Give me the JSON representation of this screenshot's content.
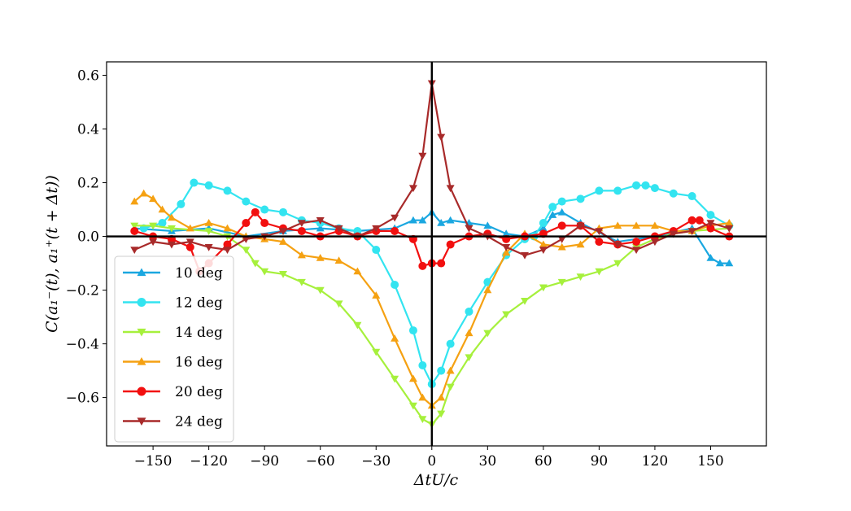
{
  "chart_data": {
    "type": "line",
    "title": "",
    "xlabel": "ΔtU/c",
    "ylabel": "C(a₁⁻(t), a₁⁺(t + Δt))",
    "xlim": [
      -175,
      180
    ],
    "ylim": [
      -0.78,
      0.65
    ],
    "xticks": [
      -150,
      -120,
      -90,
      -60,
      -30,
      0,
      30,
      60,
      90,
      120,
      150
    ],
    "xtick_labels": [
      "−150",
      "−120",
      "−90",
      "−60",
      "−30",
      "0",
      "30",
      "60",
      "90",
      "120",
      "150"
    ],
    "yticks": [
      -0.6,
      -0.4,
      -0.2,
      0.0,
      0.2,
      0.4,
      0.6
    ],
    "ytick_labels": [
      "−0.6",
      "−0.4",
      "−0.2",
      "0.0",
      "0.2",
      "0.4",
      "0.6"
    ],
    "grid": false,
    "legend_position": "lower-left",
    "reference_lines": {
      "x": 0,
      "y": 0
    },
    "series": [
      {
        "name": "10 deg",
        "color": "#1aa7e0",
        "marker": "triangle-up",
        "x": [
          -160,
          -140,
          -120,
          -100,
          -80,
          -60,
          -40,
          -20,
          -10,
          -5,
          0,
          5,
          10,
          20,
          30,
          40,
          50,
          60,
          65,
          70,
          80,
          100,
          120,
          140,
          150,
          155,
          160
        ],
        "y": [
          0.03,
          0.02,
          0.03,
          0.0,
          0.02,
          0.03,
          0.02,
          0.03,
          0.06,
          0.06,
          0.09,
          0.05,
          0.06,
          0.05,
          0.04,
          0.01,
          0.0,
          0.03,
          0.08,
          0.09,
          0.05,
          -0.02,
          0.0,
          0.03,
          -0.08,
          -0.1,
          -0.1
        ]
      },
      {
        "name": "12 deg",
        "color": "#33e4f0",
        "marker": "circle",
        "x": [
          -155,
          -145,
          -135,
          -128,
          -120,
          -110,
          -100,
          -90,
          -80,
          -70,
          -60,
          -50,
          -40,
          -30,
          -20,
          -10,
          -5,
          0,
          5,
          10,
          20,
          30,
          40,
          50,
          55,
          60,
          65,
          70,
          80,
          90,
          100,
          110,
          115,
          120,
          130,
          140,
          150,
          160
        ],
        "y": [
          0.03,
          0.05,
          0.12,
          0.2,
          0.19,
          0.17,
          0.13,
          0.1,
          0.09,
          0.06,
          0.05,
          0.03,
          0.02,
          -0.05,
          -0.18,
          -0.35,
          -0.48,
          -0.55,
          -0.5,
          -0.4,
          -0.28,
          -0.17,
          -0.07,
          -0.01,
          0.0,
          0.05,
          0.11,
          0.13,
          0.14,
          0.17,
          0.17,
          0.19,
          0.19,
          0.18,
          0.16,
          0.15,
          0.08,
          0.04
        ]
      },
      {
        "name": "14 deg",
        "color": "#a6f03c",
        "marker": "triangle-down",
        "x": [
          -160,
          -150,
          -140,
          -120,
          -110,
          -100,
          -95,
          -90,
          -80,
          -70,
          -60,
          -50,
          -40,
          -30,
          -20,
          -10,
          -5,
          0,
          5,
          10,
          20,
          30,
          40,
          50,
          60,
          70,
          80,
          90,
          100,
          110,
          120,
          130,
          140,
          160
        ],
        "y": [
          0.04,
          0.04,
          0.03,
          0.02,
          0.0,
          -0.05,
          -0.1,
          -0.13,
          -0.14,
          -0.17,
          -0.2,
          -0.25,
          -0.33,
          -0.43,
          -0.53,
          -0.63,
          -0.68,
          -0.7,
          -0.66,
          -0.56,
          -0.45,
          -0.36,
          -0.29,
          -0.24,
          -0.19,
          -0.17,
          -0.15,
          -0.13,
          -0.1,
          -0.04,
          -0.01,
          0.01,
          0.02,
          0.03
        ]
      },
      {
        "name": "16 deg",
        "color": "#f5a112",
        "marker": "triangle-up",
        "x": [
          -160,
          -155,
          -150,
          -145,
          -140,
          -130,
          -120,
          -110,
          -100,
          -90,
          -80,
          -70,
          -60,
          -50,
          -40,
          -30,
          -20,
          -10,
          -5,
          0,
          5,
          10,
          20,
          30,
          40,
          50,
          60,
          70,
          80,
          90,
          100,
          110,
          120,
          130,
          140,
          150,
          160
        ],
        "y": [
          0.13,
          0.16,
          0.14,
          0.1,
          0.07,
          0.03,
          0.05,
          0.03,
          0.0,
          -0.01,
          -0.02,
          -0.07,
          -0.08,
          -0.09,
          -0.13,
          -0.22,
          -0.38,
          -0.53,
          -0.6,
          -0.63,
          -0.6,
          -0.5,
          -0.36,
          -0.2,
          -0.06,
          0.01,
          -0.03,
          -0.04,
          -0.03,
          0.03,
          0.04,
          0.04,
          0.04,
          0.02,
          0.02,
          0.04,
          0.05
        ]
      },
      {
        "name": "20 deg",
        "color": "#f20f0f",
        "marker": "circle",
        "x": [
          -160,
          -150,
          -140,
          -130,
          -125,
          -120,
          -110,
          -100,
          -95,
          -90,
          -80,
          -70,
          -60,
          -50,
          -40,
          -30,
          -20,
          -10,
          -5,
          0,
          5,
          10,
          20,
          30,
          40,
          50,
          60,
          70,
          80,
          90,
          100,
          110,
          120,
          130,
          140,
          144,
          150,
          160
        ],
        "y": [
          0.02,
          0.0,
          -0.01,
          -0.04,
          -0.13,
          -0.1,
          -0.03,
          0.05,
          0.09,
          0.05,
          0.03,
          0.02,
          0.0,
          0.02,
          0.0,
          0.02,
          0.02,
          -0.01,
          -0.11,
          -0.1,
          -0.1,
          -0.03,
          0.0,
          0.01,
          -0.01,
          0.0,
          0.01,
          0.04,
          0.04,
          -0.02,
          -0.03,
          -0.02,
          0.0,
          0.02,
          0.06,
          0.06,
          0.03,
          0.0
        ]
      },
      {
        "name": "24 deg",
        "color": "#a82a2a",
        "marker": "triangle-down",
        "x": [
          -160,
          -150,
          -140,
          -130,
          -120,
          -110,
          -100,
          -90,
          -80,
          -70,
          -60,
          -50,
          -40,
          -30,
          -20,
          -10,
          -5,
          0,
          5,
          10,
          20,
          30,
          40,
          50,
          60,
          70,
          80,
          90,
          100,
          110,
          120,
          130,
          140,
          150,
          160
        ],
        "y": [
          -0.05,
          -0.02,
          -0.03,
          -0.02,
          -0.04,
          -0.05,
          -0.01,
          0.0,
          0.02,
          0.05,
          0.06,
          0.03,
          0.0,
          0.03,
          0.07,
          0.18,
          0.3,
          0.57,
          0.37,
          0.18,
          0.03,
          0.0,
          -0.04,
          -0.07,
          -0.05,
          -0.01,
          0.04,
          0.02,
          -0.03,
          -0.05,
          -0.02,
          0.01,
          0.02,
          0.05,
          0.03
        ]
      }
    ]
  }
}
